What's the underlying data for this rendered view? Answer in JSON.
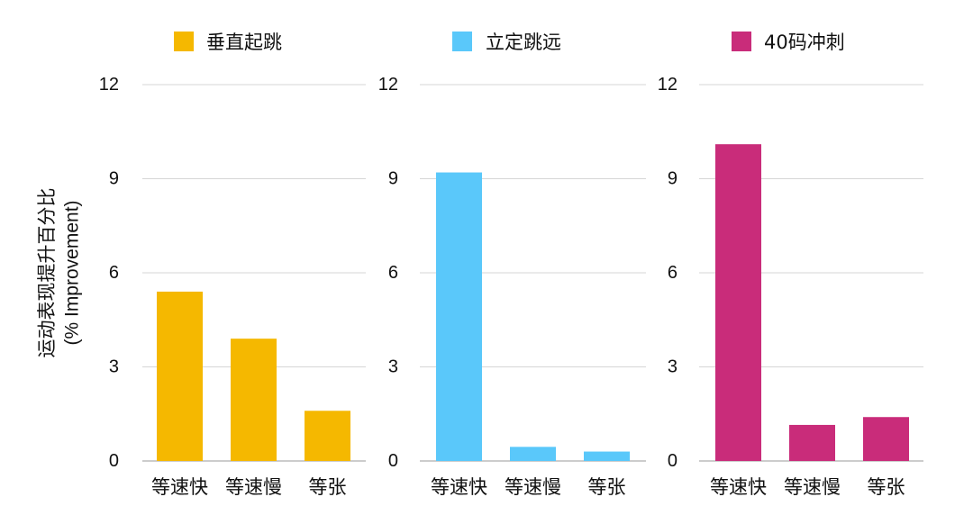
{
  "ylabel_cn": "运动表现提升百分比",
  "ylabel_en": "(% Improvement)",
  "chart_data": [
    {
      "type": "bar",
      "categories": [
        "等速快",
        "等速慢",
        "等张"
      ],
      "series": [
        {
          "name": "垂直起跳",
          "values": [
            5.4,
            3.9,
            1.6
          ]
        }
      ],
      "color": "#F5B800",
      "ylim": [
        0,
        12
      ],
      "yticks": [
        "0",
        "3",
        "6",
        "9",
        "12"
      ],
      "grid": true,
      "legend": "top"
    },
    {
      "type": "bar",
      "categories": [
        "等速快",
        "等速慢",
        "等张"
      ],
      "series": [
        {
          "name": "立定跳远",
          "values": [
            9.2,
            0.45,
            0.3
          ]
        }
      ],
      "color": "#5AC8FA",
      "ylim": [
        0,
        12
      ],
      "yticks": [
        "0",
        "3",
        "6",
        "9",
        "12"
      ],
      "grid": true,
      "legend": "top"
    },
    {
      "type": "bar",
      "categories": [
        "等速快",
        "等速慢",
        "等张"
      ],
      "series": [
        {
          "name": "40码冲刺",
          "values": [
            10.1,
            1.15,
            1.4
          ]
        }
      ],
      "color": "#C92C7A",
      "ylim": [
        0,
        12
      ],
      "yticks": [
        "0",
        "3",
        "6",
        "9",
        "12"
      ],
      "grid": true,
      "legend": "top"
    }
  ]
}
